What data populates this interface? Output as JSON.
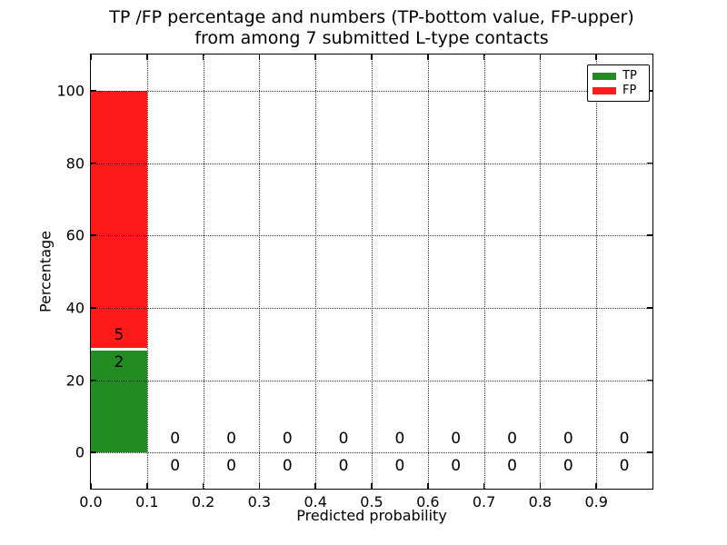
{
  "chart_data": {
    "type": "bar",
    "stacked": true,
    "title": "TP /FP percentage and numbers (TP-bottom value, FP-upper)\nfrom among 7 submitted L-type contacts",
    "xlabel": "Predicted probability",
    "ylabel": "Percentage",
    "xlim": [
      0.0,
      1.0
    ],
    "ylim": [
      -10,
      110
    ],
    "xticks": [
      "0.0",
      "0.1",
      "0.2",
      "0.3",
      "0.4",
      "0.5",
      "0.6",
      "0.7",
      "0.8",
      "0.9"
    ],
    "yticks": [
      "0",
      "20",
      "40",
      "60",
      "80",
      "100"
    ],
    "grid": true,
    "grid_style": "dotted",
    "bins": {
      "start": 0.0,
      "width": 0.1,
      "count": 10
    },
    "total_contacts": 7,
    "series": [
      {
        "name": "TP",
        "color": "#228b22",
        "counts": [
          2,
          0,
          0,
          0,
          0,
          0,
          0,
          0,
          0,
          0
        ],
        "percentages": [
          28.57,
          0,
          0,
          0,
          0,
          0,
          0,
          0,
          0,
          0
        ]
      },
      {
        "name": "FP",
        "color": "#ff1a1a",
        "counts": [
          5,
          0,
          0,
          0,
          0,
          0,
          0,
          0,
          0,
          0
        ],
        "percentages": [
          71.43,
          0,
          0,
          0,
          0,
          0,
          0,
          0,
          0,
          0
        ]
      }
    ],
    "legend_position": "upper right",
    "label_note": "TP count shown below segment boundary, FP count shown above"
  }
}
